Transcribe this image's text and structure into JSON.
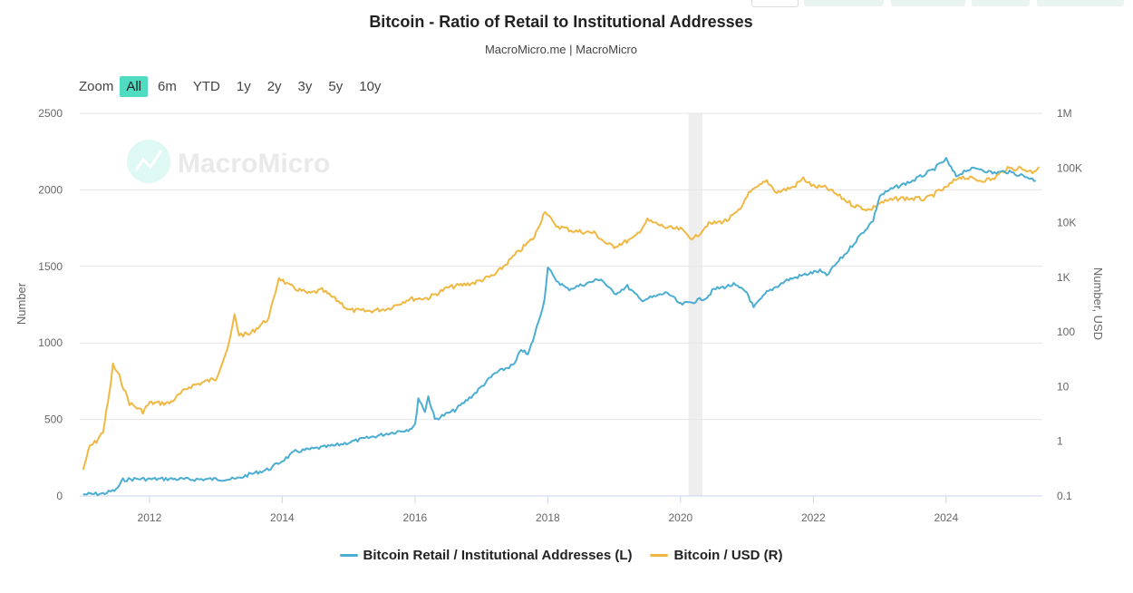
{
  "header": {
    "title": "Bitcoin - Ratio of Retail to Institutional Addresses",
    "subtitle": "MacroMicro.me | MacroMicro"
  },
  "zoom": {
    "label": "Zoom",
    "buttons": [
      "All",
      "6m",
      "YTD",
      "1y",
      "2y",
      "3y",
      "5y",
      "10y"
    ],
    "active": "All"
  },
  "watermark": {
    "text": "MacroMicro",
    "icon": "macromicro-logo-icon"
  },
  "colors": {
    "retail": "#4badd2",
    "btc": "#f0b842",
    "zoom_active": "#4fdcc0",
    "recession": "#eeeeee",
    "grid": "#e6e6e6"
  },
  "chart_data": {
    "type": "line",
    "title": "Bitcoin - Ratio of Retail to Institutional Addresses",
    "x_range": [
      2010.95,
      2025.45
    ],
    "x_ticks": [
      "2012",
      "2014",
      "2016",
      "2018",
      "2020",
      "2022",
      "2024"
    ],
    "y_left": {
      "label": "Number",
      "range": [
        0,
        2500
      ],
      "ticks": [
        "0",
        "500",
        "1000",
        "1500",
        "2000",
        "2500"
      ]
    },
    "y_right": {
      "label": "Number, USD",
      "scale": "log",
      "range": [
        0.1,
        1000000
      ],
      "ticks": [
        "0.1",
        "1",
        "10",
        "100",
        "1K",
        "10K",
        "100K",
        "1M"
      ]
    },
    "grid": true,
    "legend_position": "bottom-center",
    "shaded_periods": [
      [
        2020.12,
        2020.33
      ]
    ],
    "series": [
      {
        "name": "Bitcoin Retail / Institutional Addresses (L)",
        "axis": "left",
        "points": [
          [
            2011.0,
            10
          ],
          [
            2011.3,
            15
          ],
          [
            2011.5,
            40
          ],
          [
            2011.6,
            105
          ],
          [
            2011.8,
            112
          ],
          [
            2012.0,
            110
          ],
          [
            2012.3,
            112
          ],
          [
            2012.6,
            108
          ],
          [
            2013.0,
            110
          ],
          [
            2013.3,
            110
          ],
          [
            2013.5,
            140
          ],
          [
            2013.8,
            175
          ],
          [
            2014.0,
            230
          ],
          [
            2014.2,
            290
          ],
          [
            2014.5,
            310
          ],
          [
            2014.8,
            330
          ],
          [
            2015.0,
            350
          ],
          [
            2015.3,
            380
          ],
          [
            2015.6,
            410
          ],
          [
            2015.9,
            435
          ],
          [
            2016.0,
            460
          ],
          [
            2016.05,
            640
          ],
          [
            2016.15,
            555
          ],
          [
            2016.2,
            650
          ],
          [
            2016.3,
            500
          ],
          [
            2016.6,
            560
          ],
          [
            2016.9,
            670
          ],
          [
            2017.2,
            800
          ],
          [
            2017.5,
            860
          ],
          [
            2017.6,
            960
          ],
          [
            2017.7,
            920
          ],
          [
            2017.8,
            1050
          ],
          [
            2017.95,
            1280
          ],
          [
            2018.0,
            1500
          ],
          [
            2018.1,
            1420
          ],
          [
            2018.3,
            1350
          ],
          [
            2018.6,
            1390
          ],
          [
            2018.8,
            1420
          ],
          [
            2019.0,
            1320
          ],
          [
            2019.2,
            1370
          ],
          [
            2019.4,
            1280
          ],
          [
            2019.6,
            1300
          ],
          [
            2019.8,
            1330
          ],
          [
            2020.0,
            1250
          ],
          [
            2020.2,
            1270
          ],
          [
            2020.4,
            1300
          ],
          [
            2020.5,
            1350
          ],
          [
            2020.8,
            1380
          ],
          [
            2021.0,
            1330
          ],
          [
            2021.1,
            1230
          ],
          [
            2021.3,
            1330
          ],
          [
            2021.6,
            1410
          ],
          [
            2021.9,
            1450
          ],
          [
            2022.1,
            1470
          ],
          [
            2022.2,
            1440
          ],
          [
            2022.35,
            1520
          ],
          [
            2022.5,
            1590
          ],
          [
            2022.7,
            1700
          ],
          [
            2022.9,
            1800
          ],
          [
            2023.0,
            1960
          ],
          [
            2023.2,
            2010
          ],
          [
            2023.5,
            2060
          ],
          [
            2023.8,
            2130
          ],
          [
            2024.0,
            2200
          ],
          [
            2024.05,
            2160
          ],
          [
            2024.15,
            2090
          ],
          [
            2024.3,
            2130
          ],
          [
            2024.5,
            2140
          ],
          [
            2024.7,
            2110
          ],
          [
            2024.9,
            2120
          ],
          [
            2025.1,
            2100
          ],
          [
            2025.25,
            2080
          ],
          [
            2025.35,
            2060
          ]
        ]
      },
      {
        "name": "Bitcoin / USD (R)",
        "axis": "right",
        "points": [
          [
            2011.0,
            0.3
          ],
          [
            2011.1,
            0.8
          ],
          [
            2011.2,
            1.0
          ],
          [
            2011.3,
            1.5
          ],
          [
            2011.4,
            8
          ],
          [
            2011.45,
            25
          ],
          [
            2011.55,
            15
          ],
          [
            2011.7,
            5
          ],
          [
            2011.9,
            3.5
          ],
          [
            2012.0,
            5
          ],
          [
            2012.3,
            5
          ],
          [
            2012.6,
            10
          ],
          [
            2012.9,
            13
          ],
          [
            2013.0,
            14
          ],
          [
            2013.2,
            60
          ],
          [
            2013.28,
            200
          ],
          [
            2013.35,
            90
          ],
          [
            2013.5,
            90
          ],
          [
            2013.8,
            180
          ],
          [
            2013.95,
            1000
          ],
          [
            2014.1,
            700
          ],
          [
            2014.4,
            500
          ],
          [
            2014.6,
            580
          ],
          [
            2014.9,
            330
          ],
          [
            2015.0,
            250
          ],
          [
            2015.3,
            240
          ],
          [
            2015.6,
            270
          ],
          [
            2015.9,
            400
          ],
          [
            2016.2,
            420
          ],
          [
            2016.5,
            650
          ],
          [
            2016.9,
            800
          ],
          [
            2017.2,
            1100
          ],
          [
            2017.5,
            2500
          ],
          [
            2017.8,
            5500
          ],
          [
            2017.96,
            17000
          ],
          [
            2018.1,
            9000
          ],
          [
            2018.4,
            7000
          ],
          [
            2018.7,
            6500
          ],
          [
            2018.9,
            4000
          ],
          [
            2019.0,
            3700
          ],
          [
            2019.3,
            5200
          ],
          [
            2019.5,
            11000
          ],
          [
            2019.8,
            8000
          ],
          [
            2020.0,
            7500
          ],
          [
            2020.2,
            5000
          ],
          [
            2020.4,
            9200
          ],
          [
            2020.7,
            11000
          ],
          [
            2020.9,
            17000
          ],
          [
            2021.0,
            32000
          ],
          [
            2021.3,
            58000
          ],
          [
            2021.45,
            36000
          ],
          [
            2021.7,
            45000
          ],
          [
            2021.85,
            64000
          ],
          [
            2022.0,
            46000
          ],
          [
            2022.2,
            43000
          ],
          [
            2022.4,
            30000
          ],
          [
            2022.6,
            21000
          ],
          [
            2022.85,
            17000
          ],
          [
            2023.0,
            23000
          ],
          [
            2023.3,
            28000
          ],
          [
            2023.7,
            27000
          ],
          [
            2023.9,
            38000
          ],
          [
            2024.0,
            43000
          ],
          [
            2024.2,
            70000
          ],
          [
            2024.5,
            60000
          ],
          [
            2024.7,
            62000
          ],
          [
            2024.9,
            95000
          ],
          [
            2025.1,
            100000
          ],
          [
            2025.3,
            85000
          ],
          [
            2025.4,
            105000
          ]
        ]
      }
    ]
  }
}
